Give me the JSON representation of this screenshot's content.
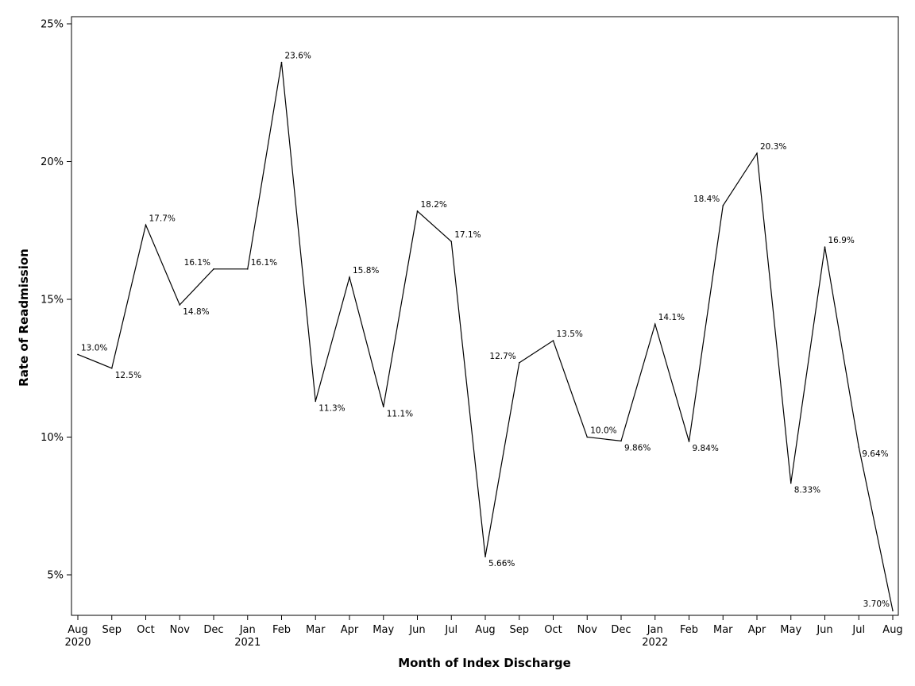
{
  "chart_data": {
    "type": "line",
    "title": "",
    "xlabel": "Month of Index Discharge",
    "ylabel": "Rate of Readmission",
    "x_months": [
      "Aug",
      "Sep",
      "Oct",
      "Nov",
      "Dec",
      "Jan",
      "Feb",
      "Mar",
      "Apr",
      "May",
      "Jun",
      "Jul",
      "Aug",
      "Sep",
      "Oct",
      "Nov",
      "Dec",
      "Jan",
      "Feb",
      "Mar",
      "Apr",
      "May",
      "Jun",
      "Jul",
      "Aug"
    ],
    "x_years": [
      "2020",
      "",
      "",
      "",
      "",
      "2021",
      "",
      "",
      "",
      "",
      "",
      "",
      "",
      "",
      "",
      "",
      "",
      "2022",
      "",
      "",
      "",
      "",
      "",
      "",
      ""
    ],
    "values": [
      13.0,
      12.5,
      17.7,
      14.8,
      16.1,
      16.1,
      23.6,
      11.3,
      15.8,
      11.1,
      18.2,
      17.1,
      5.66,
      12.7,
      13.5,
      10.0,
      9.86,
      14.1,
      9.84,
      18.4,
      20.3,
      8.33,
      16.9,
      9.64,
      3.7
    ],
    "value_labels": [
      "13.0%",
      "12.5%",
      "17.7%",
      "14.8%",
      "16.1%",
      "16.1%",
      "23.6%",
      "11.3%",
      "15.8%",
      "11.1%",
      "18.2%",
      "17.1%",
      "5.66%",
      "12.7%",
      "13.5%",
      "10.0%",
      "9.86%",
      "14.1%",
      "9.84%",
      "18.4%",
      "20.3%",
      "8.33%",
      "16.9%",
      "9.64%",
      "3.70%"
    ],
    "label_placement": [
      "above-right",
      "below-right",
      "above-right",
      "below-right",
      "above-left",
      "above-right",
      "above-right",
      "below-right",
      "above-right",
      "below-right",
      "above-right",
      "above-right",
      "below-right",
      "above-left",
      "above-right",
      "above-right",
      "below-right",
      "above-right",
      "below-right",
      "above-left",
      "above-right",
      "below-right",
      "above-right",
      "below-right",
      "above-left"
    ],
    "y_ticks": [
      5,
      10,
      15,
      20,
      25
    ],
    "y_tick_labels": [
      "5%",
      "10%",
      "15%",
      "20%",
      "25%"
    ],
    "ylim": [
      3.5,
      25.3
    ],
    "grid": false,
    "legend": "none",
    "line_color": "#000000"
  }
}
